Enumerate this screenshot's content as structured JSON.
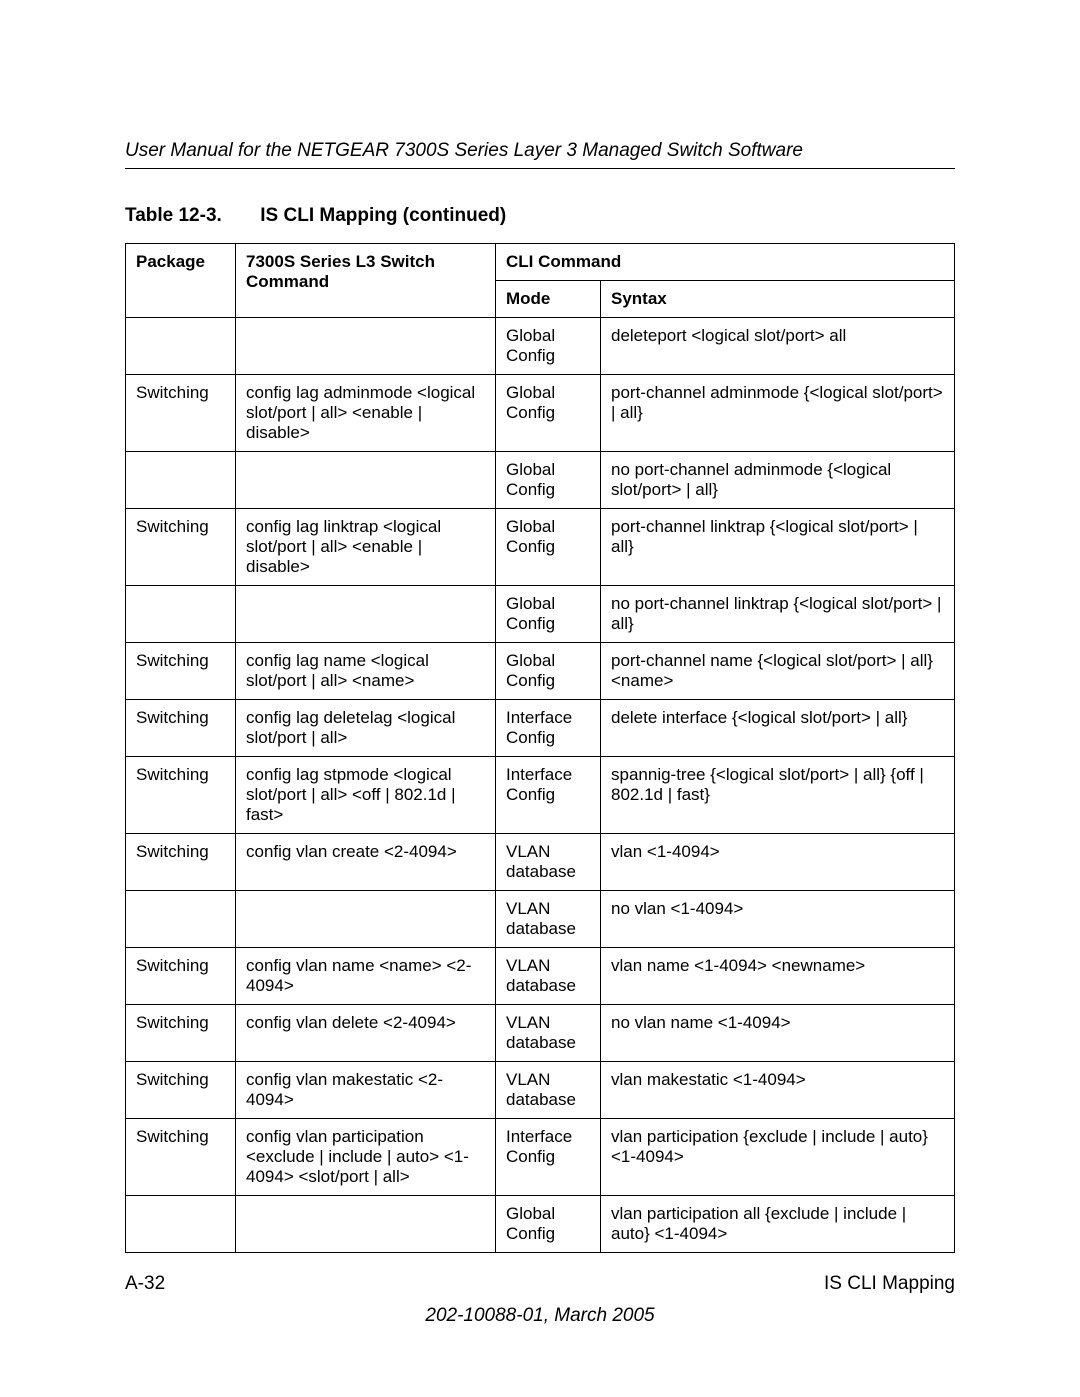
{
  "header": {
    "doc_title": "User Manual for the NETGEAR 7300S Series Layer 3 Managed Switch Software"
  },
  "caption": {
    "label": "Table 12-3.",
    "title": "IS CLI Mapping  (continued)"
  },
  "columns": {
    "package": "Package",
    "command": "7300S Series L3 Switch Command",
    "cli": "CLI Command",
    "mode": "Mode",
    "syntax": "Syntax"
  },
  "rows": [
    {
      "package": "",
      "command": "",
      "mode": "Global Config",
      "syntax": "deleteport <logical slot/port> all"
    },
    {
      "package": "Switching",
      "command": "config lag adminmode <logical slot/port | all> <enable | disable>",
      "mode": "Global Config",
      "syntax": "port-channel adminmode {<logical slot/port> | all}"
    },
    {
      "package": "",
      "command": "",
      "mode": "Global Config",
      "syntax": "no port-channel adminmode {<logical slot/port> | all}"
    },
    {
      "package": "Switching",
      "command": "config lag linktrap <logical slot/port | all> <enable | disable>",
      "mode": "Global Config",
      "syntax": "port-channel linktrap {<logical slot/port> | all}"
    },
    {
      "package": "",
      "command": "",
      "mode": "Global Config",
      "syntax": "no port-channel linktrap {<logical slot/port> | all}"
    },
    {
      "package": "Switching",
      "command": "config lag name <logical slot/port | all> <name>",
      "mode": "Global Config",
      "syntax": "port-channel name {<logical slot/port> | all} <name>"
    },
    {
      "package": "Switching",
      "command": "config lag deletelag <logical slot/port | all>",
      "mode": "Interface Config",
      "syntax": "delete interface {<logical slot/port> | all}"
    },
    {
      "package": "Switching",
      "command": "config lag stpmode <logical slot/port | all> <off | 802.1d | fast>",
      "mode": "Interface Config",
      "syntax": "spannig-tree {<logical slot/port> | all} {off | 802.1d | fast}"
    },
    {
      "package": "Switching",
      "command": "config vlan create <2-4094>",
      "mode": "VLAN database",
      "syntax": "vlan <1-4094>"
    },
    {
      "package": "",
      "command": "",
      "mode": "VLAN database",
      "syntax": "no vlan <1-4094>"
    },
    {
      "package": "Switching",
      "command": "config vlan name <name> <2-4094>",
      "mode": "VLAN database",
      "syntax": "vlan name <1-4094> <newname>"
    },
    {
      "package": "Switching",
      "command": "config vlan delete <2-4094>",
      "mode": "VLAN database",
      "syntax": "no vlan name <1-4094>"
    },
    {
      "package": "Switching",
      "command": "config vlan makestatic <2-4094>",
      "mode": "VLAN database",
      "syntax": "vlan makestatic <1-4094>"
    },
    {
      "package": "Switching",
      "command": "config vlan participation <exclude | include | auto> <1-4094> <slot/port | all>",
      "mode": "Interface Config",
      "syntax": "vlan participation {exclude | include | auto} <1-4094>"
    },
    {
      "package": "",
      "command": "",
      "mode": "Global Config",
      "syntax": "vlan participation all {exclude | include | auto} <1-4094>"
    }
  ],
  "footer": {
    "page_no": "A-32",
    "section": "IS CLI Mapping",
    "pubinfo": "202-10088-01, March 2005"
  }
}
